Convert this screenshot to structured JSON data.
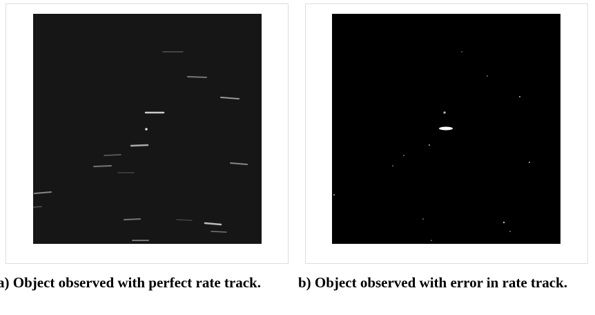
{
  "figures": [
    {
      "caption": "a) Object observed with perfect rate track."
    },
    {
      "caption": "b) Object observed with error in rate track."
    }
  ]
}
